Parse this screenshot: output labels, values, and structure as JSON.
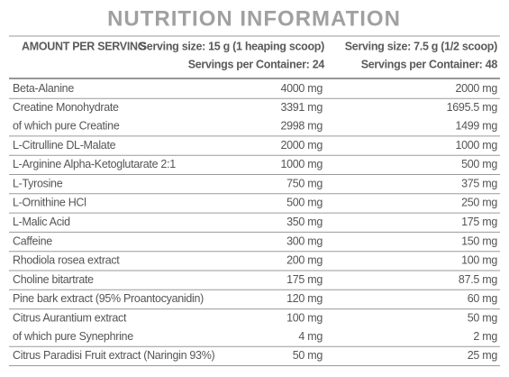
{
  "header": {
    "title": "NUTRITION INFORMATION",
    "amount_label": "AMOUNT PER SERVING",
    "columns": [
      {
        "serving_size": "Serving size: 15 g (1 heaping scoop)",
        "servings": "Servings per Container: 24"
      },
      {
        "serving_size": "Serving size: 7.5 g (1/2 scoop)",
        "servings": "Servings per Container: 48"
      }
    ]
  },
  "table": {
    "rows": [
      [
        [
          "Beta-Alanine",
          "4000 mg",
          "2000 mg"
        ]
      ],
      [
        [
          "Creatine Monohydrate",
          "3391 mg",
          "1695.5 mg"
        ],
        [
          "of which pure Creatine",
          "2998 mg",
          "1499 mg"
        ]
      ],
      [
        [
          "L-Citrulline DL-Malate",
          "2000 mg",
          "1000 mg"
        ]
      ],
      [
        [
          "L-Arginine Alpha-Ketoglutarate 2:1",
          "1000 mg",
          "500 mg"
        ]
      ],
      [
        [
          "L-Tyrosine",
          "750 mg",
          "375 mg"
        ]
      ],
      [
        [
          "L-Ornithine HCl",
          "500 mg",
          "250 mg"
        ]
      ],
      [
        [
          "L-Malic Acid",
          "350 mg",
          "175 mg"
        ]
      ],
      [
        [
          "Caffeine",
          "300 mg",
          "150 mg"
        ]
      ],
      [
        [
          "Rhodiola rosea extract",
          "200 mg",
          "100 mg"
        ]
      ],
      [
        [
          "Choline bitartrate",
          "175 mg",
          "87.5 mg"
        ]
      ],
      [
        [
          "Pine bark extract (95% Proantocyanidin)",
          "120 mg",
          "60 mg"
        ]
      ],
      [
        [
          "Citrus Aurantium extract",
          "100 mg",
          "50 mg"
        ],
        [
          "of which pure Synephrine",
          "4 mg",
          "2 mg"
        ]
      ],
      [
        [
          "Citrus Paradisi Fruit extract (Naringin 93%)",
          "50 mg",
          "25 mg"
        ]
      ]
    ]
  }
}
